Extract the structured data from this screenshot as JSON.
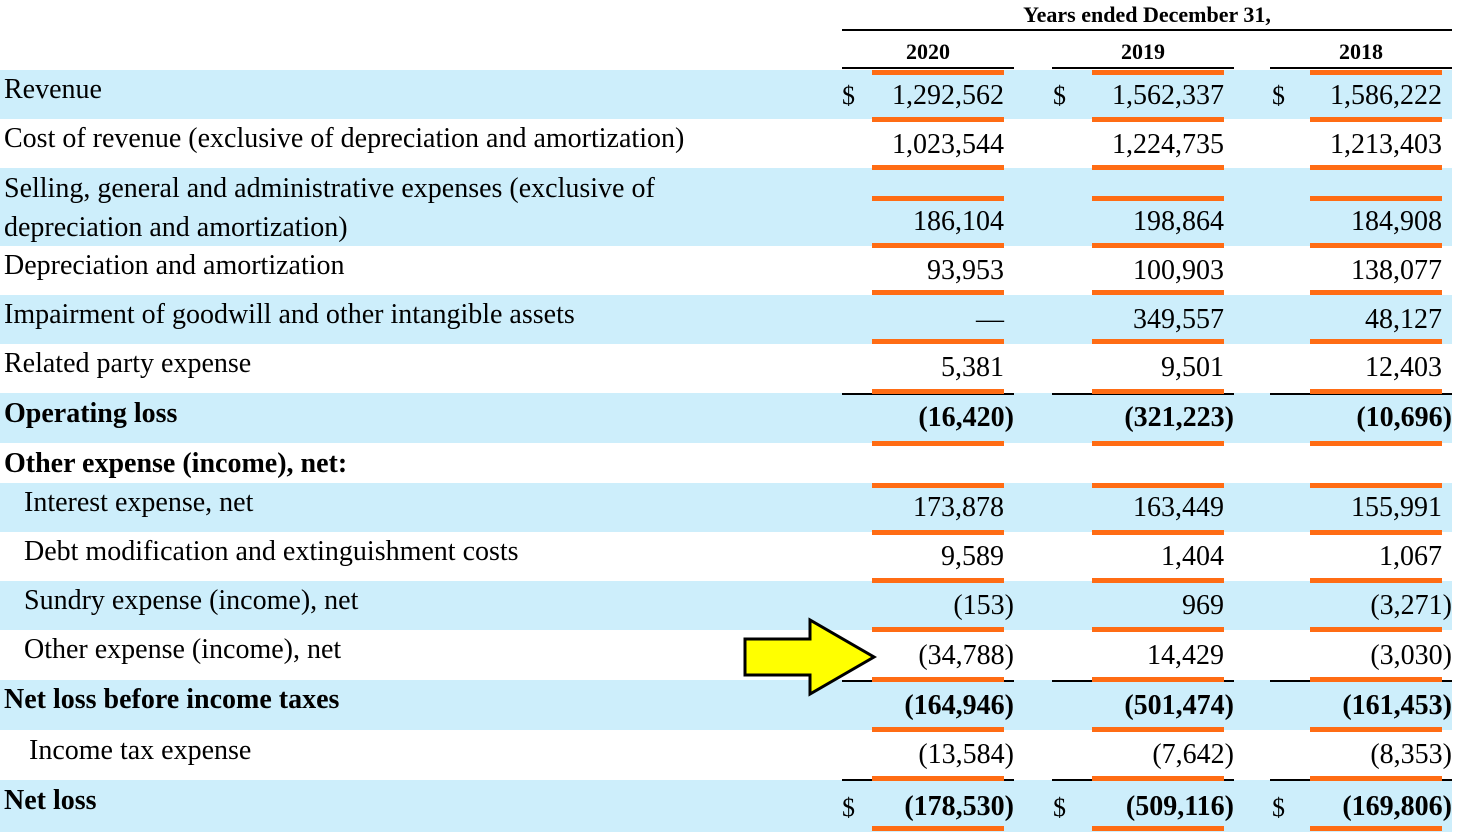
{
  "header": {
    "period_label": "Years ended December 31,",
    "years": [
      "2020",
      "2019",
      "2018"
    ]
  },
  "currency_symbol": "$",
  "colors": {
    "row_shade": "#cdeefb",
    "highlight_underline": "#ff6c14",
    "arrow_fill": "#ffff00"
  },
  "annotation": {
    "arrow_icon": "yellow-right-arrow-icon",
    "points_to": "Other expense (income), net — 2020"
  },
  "rows": [
    {
      "label": "Revenue",
      "values": [
        "1,292,562",
        "1,562,337",
        "1,586,222"
      ],
      "dollar": true
    },
    {
      "label": "Cost of revenue (exclusive of depreciation and amortization)",
      "values": [
        "1,023,544",
        "1,224,735",
        "1,213,403"
      ]
    },
    {
      "label_lines": [
        "Selling, general and administrative expenses (exclusive of",
        "depreciation and amortization)"
      ],
      "values": [
        "186,104",
        "198,864",
        "184,908"
      ]
    },
    {
      "label": "Depreciation and amortization",
      "values": [
        "93,953",
        "100,903",
        "138,077"
      ]
    },
    {
      "label": "Impairment of goodwill and other intangible assets",
      "values": [
        "—",
        "349,557",
        "48,127"
      ]
    },
    {
      "label": "Related party expense",
      "values": [
        "5,381",
        "9,501",
        "12,403"
      ]
    },
    {
      "label": "Operating loss",
      "values": [
        "(16,420)",
        "(321,223)",
        "(10,696)"
      ],
      "bold": true
    },
    {
      "label": "Other expense (income), net:",
      "bold": true
    },
    {
      "label": "Interest expense, net",
      "values": [
        "173,878",
        "163,449",
        "155,991"
      ]
    },
    {
      "label": "Debt modification and extinguishment costs",
      "values": [
        "9,589",
        "1,404",
        "1,067"
      ]
    },
    {
      "label": "Sundry expense (income), net",
      "values": [
        "(153)",
        "969",
        "(3,271)"
      ]
    },
    {
      "label": "Other expense (income), net",
      "values": [
        "(34,788)",
        "14,429",
        "(3,030)"
      ]
    },
    {
      "label": "Net loss before income taxes",
      "values": [
        "(164,946)",
        "(501,474)",
        "(161,453)"
      ],
      "bold": true
    },
    {
      "label": "Income tax expense",
      "values": [
        "(13,584)",
        "(7,642)",
        "(8,353)"
      ]
    },
    {
      "label": "Net loss",
      "values": [
        "(178,530)",
        "(509,116)",
        "(169,806)"
      ],
      "bold": true,
      "dollar": true
    }
  ]
}
